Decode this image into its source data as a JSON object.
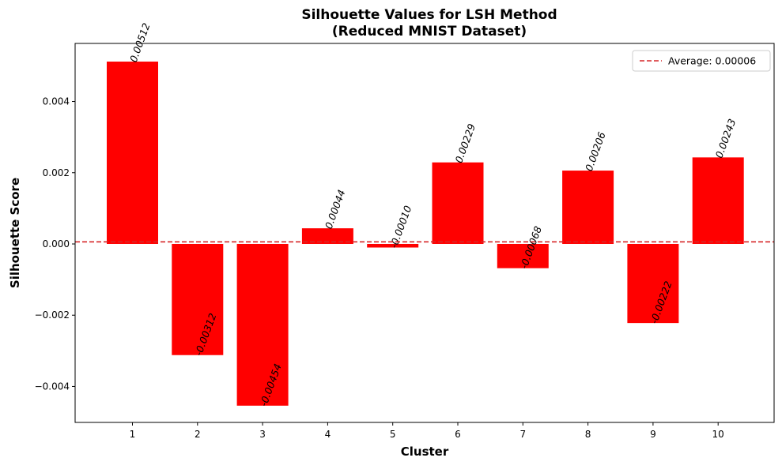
{
  "chart_data": {
    "type": "bar",
    "title": "Silhouette Values for LSH Method",
    "subtitle": "(Reduced MNIST Dataset)",
    "xlabel": "Cluster",
    "ylabel": "Silhouette Score",
    "categories": [
      "1",
      "2",
      "3",
      "4",
      "5",
      "6",
      "7",
      "8",
      "9",
      "10"
    ],
    "values": [
      0.00512,
      -0.00312,
      -0.00454,
      0.00044,
      -0.0001,
      0.00229,
      -0.00068,
      0.00206,
      -0.00222,
      0.00243
    ],
    "data_labels": [
      "0.00512",
      "-0.00312",
      "-0.00454",
      "0.00044",
      "-0.00010",
      "0.00229",
      "-0.00068",
      "0.00206",
      "-0.00222",
      "0.00243"
    ],
    "ylim": [
      -0.00501,
      0.00563
    ],
    "yticks": [
      -0.004,
      -0.002,
      0.0,
      0.002,
      0.004
    ],
    "ytick_labels": [
      "−0.004",
      "−0.002",
      "0.000",
      "0.002",
      "0.004"
    ],
    "bar_color": "#ff0000",
    "average": {
      "value": 6e-05,
      "label": "Average: 0.00006",
      "color": "#d62728",
      "style": "dashed"
    },
    "legend": {
      "position": "top-right",
      "entries": [
        "Average: 0.00006"
      ]
    },
    "grid": false
  }
}
